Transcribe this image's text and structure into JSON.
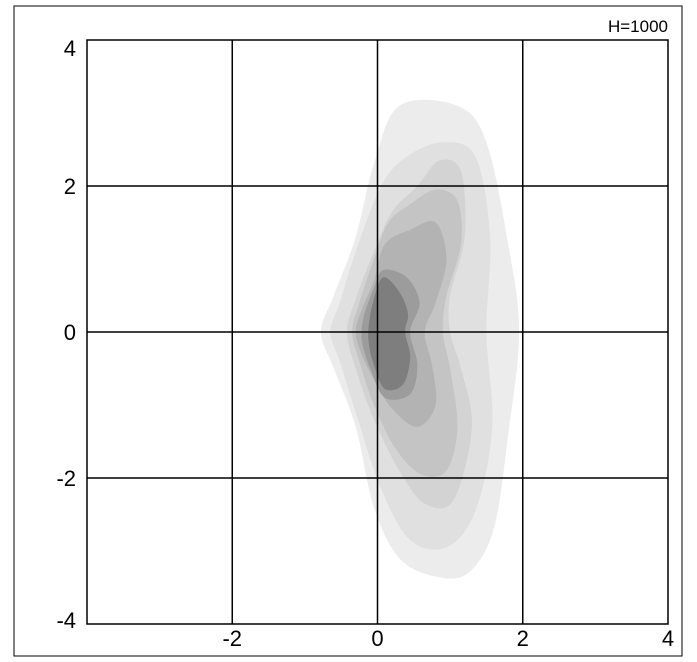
{
  "chart_data": {
    "type": "contour",
    "annotation": "H=1000",
    "xlim": [
      -4,
      4
    ],
    "ylim": [
      -4,
      4
    ],
    "xticks": [
      -2,
      0,
      2,
      4
    ],
    "yticks": [
      4,
      2,
      0,
      -2,
      -4
    ],
    "xtick_labels": [
      "-2",
      "0",
      "2",
      "4"
    ],
    "ytick_labels": [
      "4",
      "2",
      "0",
      "-2",
      "-4"
    ],
    "grid": true,
    "levels": [
      {
        "level": 1,
        "color": "#ececec",
        "points": [
          [
            0.3,
            3.1
          ],
          [
            1.1,
            3.1
          ],
          [
            1.5,
            2.6
          ],
          [
            1.8,
            1.2
          ],
          [
            1.95,
            0
          ],
          [
            1.8,
            -1.4
          ],
          [
            1.6,
            -2.7
          ],
          [
            1.25,
            -3.3
          ],
          [
            0.8,
            -3.35
          ],
          [
            0.3,
            -3.1
          ],
          [
            -0.05,
            -2.4
          ],
          [
            -0.3,
            -1.3
          ],
          [
            -0.6,
            -0.5
          ],
          [
            -0.78,
            0
          ],
          [
            -0.6,
            0.5
          ],
          [
            -0.3,
            1.3
          ],
          [
            -0.05,
            2.3
          ]
        ]
      },
      {
        "level": 2,
        "color": "#e0e0e0",
        "points": [
          [
            0.4,
            2.4
          ],
          [
            0.9,
            2.6
          ],
          [
            1.35,
            2.4
          ],
          [
            1.55,
            1.3
          ],
          [
            1.5,
            0
          ],
          [
            1.58,
            -1.3
          ],
          [
            1.35,
            -2.45
          ],
          [
            0.95,
            -2.95
          ],
          [
            0.45,
            -2.85
          ],
          [
            0.05,
            -2.15
          ],
          [
            -0.3,
            -1.1
          ],
          [
            -0.52,
            -0.4
          ],
          [
            -0.65,
            0
          ],
          [
            -0.52,
            0.4
          ],
          [
            -0.3,
            1.1
          ],
          [
            0.05,
            2.0
          ]
        ]
      },
      {
        "level": 3,
        "color": "#d3d3d3",
        "points": [
          [
            0.2,
            1.65
          ],
          [
            0.55,
            2.0
          ],
          [
            0.85,
            2.35
          ],
          [
            1.15,
            2.2
          ],
          [
            1.2,
            1.3
          ],
          [
            1.0,
            0.5
          ],
          [
            1.0,
            0
          ],
          [
            1.15,
            -0.5
          ],
          [
            1.3,
            -1.3
          ],
          [
            1.05,
            -2.3
          ],
          [
            0.65,
            -2.35
          ],
          [
            0.3,
            -1.9
          ],
          [
            -0.05,
            -1.2
          ],
          [
            -0.3,
            -0.5
          ],
          [
            -0.42,
            0
          ],
          [
            -0.3,
            0.45
          ],
          [
            -0.05,
            1.1
          ]
        ]
      },
      {
        "level": 4,
        "color": "#c4c4c4",
        "points": [
          [
            0.15,
            1.5
          ],
          [
            0.45,
            1.75
          ],
          [
            0.8,
            1.95
          ],
          [
            1.1,
            1.8
          ],
          [
            1.15,
            1.2
          ],
          [
            0.95,
            0.5
          ],
          [
            0.9,
            0
          ],
          [
            1.0,
            -0.5
          ],
          [
            1.1,
            -1.3
          ],
          [
            0.95,
            -1.9
          ],
          [
            0.6,
            -1.95
          ],
          [
            0.25,
            -1.6
          ],
          [
            -0.05,
            -1.0
          ],
          [
            -0.25,
            -0.4
          ],
          [
            -0.35,
            0
          ],
          [
            -0.25,
            0.4
          ],
          [
            -0.05,
            1.0
          ]
        ]
      },
      {
        "level": 5,
        "color": "#b3b3b3",
        "points": [
          [
            0.1,
            1.2
          ],
          [
            0.45,
            1.4
          ],
          [
            0.8,
            1.5
          ],
          [
            0.95,
            1.0
          ],
          [
            0.8,
            0.4
          ],
          [
            0.65,
            0
          ],
          [
            0.75,
            -0.45
          ],
          [
            0.8,
            -1.0
          ],
          [
            0.55,
            -1.3
          ],
          [
            0.2,
            -1.05
          ],
          [
            -0.05,
            -0.65
          ],
          [
            -0.22,
            -0.3
          ],
          [
            -0.3,
            0
          ],
          [
            -0.22,
            0.3
          ],
          [
            -0.05,
            0.7
          ]
        ]
      },
      {
        "level": 6,
        "color": "#9c9c9c",
        "points": [
          [
            0.08,
            0.85
          ],
          [
            0.4,
            0.75
          ],
          [
            0.58,
            0.4
          ],
          [
            0.45,
            0
          ],
          [
            0.55,
            -0.45
          ],
          [
            0.45,
            -0.85
          ],
          [
            0.1,
            -0.9
          ],
          [
            -0.1,
            -0.5
          ],
          [
            -0.2,
            -0.2
          ],
          [
            -0.22,
            0
          ],
          [
            -0.18,
            0.25
          ],
          [
            -0.05,
            0.6
          ]
        ]
      },
      {
        "level": 7,
        "color": "#7e7e7e",
        "points": [
          [
            0.08,
            0.75
          ],
          [
            0.3,
            0.55
          ],
          [
            0.42,
            0.25
          ],
          [
            0.38,
            0
          ],
          [
            0.45,
            -0.35
          ],
          [
            0.35,
            -0.72
          ],
          [
            0.1,
            -0.78
          ],
          [
            -0.05,
            -0.45
          ],
          [
            -0.12,
            -0.15
          ],
          [
            -0.12,
            0.1
          ],
          [
            -0.05,
            0.45
          ]
        ]
      }
    ]
  }
}
